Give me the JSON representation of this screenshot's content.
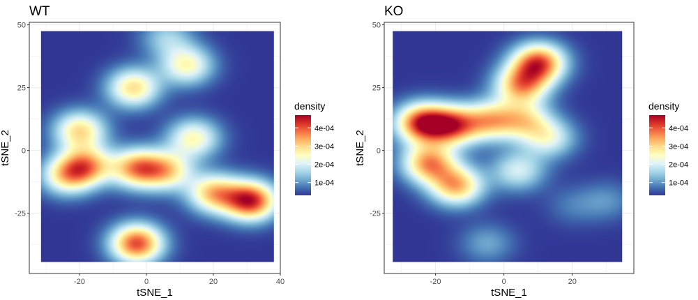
{
  "chart_data": [
    {
      "type": "heatmap",
      "title": "WT",
      "xlabel": "tSNE_1",
      "ylabel": "tSNE_2",
      "xlim": [
        -35,
        40
      ],
      "ylim": [
        -49,
        51
      ],
      "xticks": [
        -20,
        0,
        20,
        40
      ],
      "yticks": [
        -25,
        0,
        25,
        50
      ],
      "xtick_labels": [
        "-20",
        "0",
        "20",
        "40"
      ],
      "ytick_labels": [
        "-25",
        "0",
        "25",
        "50"
      ],
      "grid": true,
      "legend": {
        "title": "density",
        "placement": "right",
        "range": [
          3e-05,
          0.00047
        ],
        "breaks": [
          0.0001,
          0.0002,
          0.0003,
          0.0004
        ],
        "labels": [
          "1e-04",
          "2e-04",
          "3e-04",
          "4e-04"
        ],
        "colors": [
          "#313695",
          "#4575b4",
          "#74add1",
          "#abd9e9",
          "#e0f3f8",
          "#ffffbf",
          "#fee090",
          "#fdae61",
          "#f46d43",
          "#d73027",
          "#a50026"
        ]
      },
      "extent": {
        "x": [
          -31.5,
          38
        ],
        "y": [
          -44.5,
          47.5
        ]
      },
      "density_peaks": [
        {
          "x": -20,
          "y": 8,
          "density": 0.00031
        },
        {
          "x": -18,
          "y": -6,
          "density": 0.00033
        },
        {
          "x": -24,
          "y": -10,
          "density": 0.00028
        },
        {
          "x": -3,
          "y": -7,
          "density": 0.00036
        },
        {
          "x": 6,
          "y": -8,
          "density": 0.00029
        },
        {
          "x": -4,
          "y": 25,
          "density": 0.00031
        },
        {
          "x": 12,
          "y": 34,
          "density": 0.00027
        },
        {
          "x": 14,
          "y": 5,
          "density": 0.00027
        },
        {
          "x": 31,
          "y": -20,
          "density": 0.00047
        },
        {
          "x": 20,
          "y": -17,
          "density": 0.00033
        },
        {
          "x": -3,
          "y": -37,
          "density": 0.00044
        },
        {
          "x": 6,
          "y": 45,
          "density": 0.00016
        }
      ]
    },
    {
      "type": "heatmap",
      "title": "KO",
      "xlabel": "tSNE_1",
      "ylabel": "tSNE_2",
      "xlim": [
        -35,
        38
      ],
      "ylim": [
        -49,
        51
      ],
      "xticks": [
        -20,
        0,
        20
      ],
      "yticks": [
        -25,
        0,
        25,
        50
      ],
      "xtick_labels": [
        "-20",
        "0",
        "20"
      ],
      "ytick_labels": [
        "-25",
        "0",
        "25",
        "50"
      ],
      "grid": true,
      "legend": {
        "title": "density",
        "placement": "right",
        "range": [
          3e-05,
          0.00047
        ],
        "breaks": [
          0.0001,
          0.0002,
          0.0003,
          0.0004
        ],
        "labels": [
          "1e-04",
          "2e-04",
          "3e-04",
          "4e-04"
        ],
        "colors": [
          "#313695",
          "#4575b4",
          "#74add1",
          "#abd9e9",
          "#e0f3f8",
          "#ffffbf",
          "#fee090",
          "#fdae61",
          "#f46d43",
          "#d73027",
          "#a50026"
        ]
      },
      "extent": {
        "x": [
          -32.5,
          34.5
        ],
        "y": [
          -44.5,
          47.5
        ]
      },
      "density_peaks": [
        {
          "x": -24,
          "y": 11,
          "density": 0.00045
        },
        {
          "x": -15,
          "y": 10,
          "density": 0.00039
        },
        {
          "x": -22,
          "y": -5,
          "density": 0.00037
        },
        {
          "x": -14,
          "y": -14,
          "density": 0.00035
        },
        {
          "x": -4,
          "y": 12,
          "density": 0.0003
        },
        {
          "x": 5,
          "y": 26,
          "density": 0.00035
        },
        {
          "x": 10,
          "y": 35,
          "density": 0.00043
        },
        {
          "x": 6,
          "y": 12,
          "density": 0.00025
        },
        {
          "x": 13,
          "y": 5,
          "density": 0.00022
        },
        {
          "x": 4,
          "y": -8,
          "density": 0.00021
        },
        {
          "x": -5,
          "y": -37,
          "density": 0.00012
        },
        {
          "x": 30,
          "y": -20,
          "density": 0.0001
        },
        {
          "x": 20,
          "y": -22,
          "density": 8e-05
        }
      ]
    }
  ]
}
